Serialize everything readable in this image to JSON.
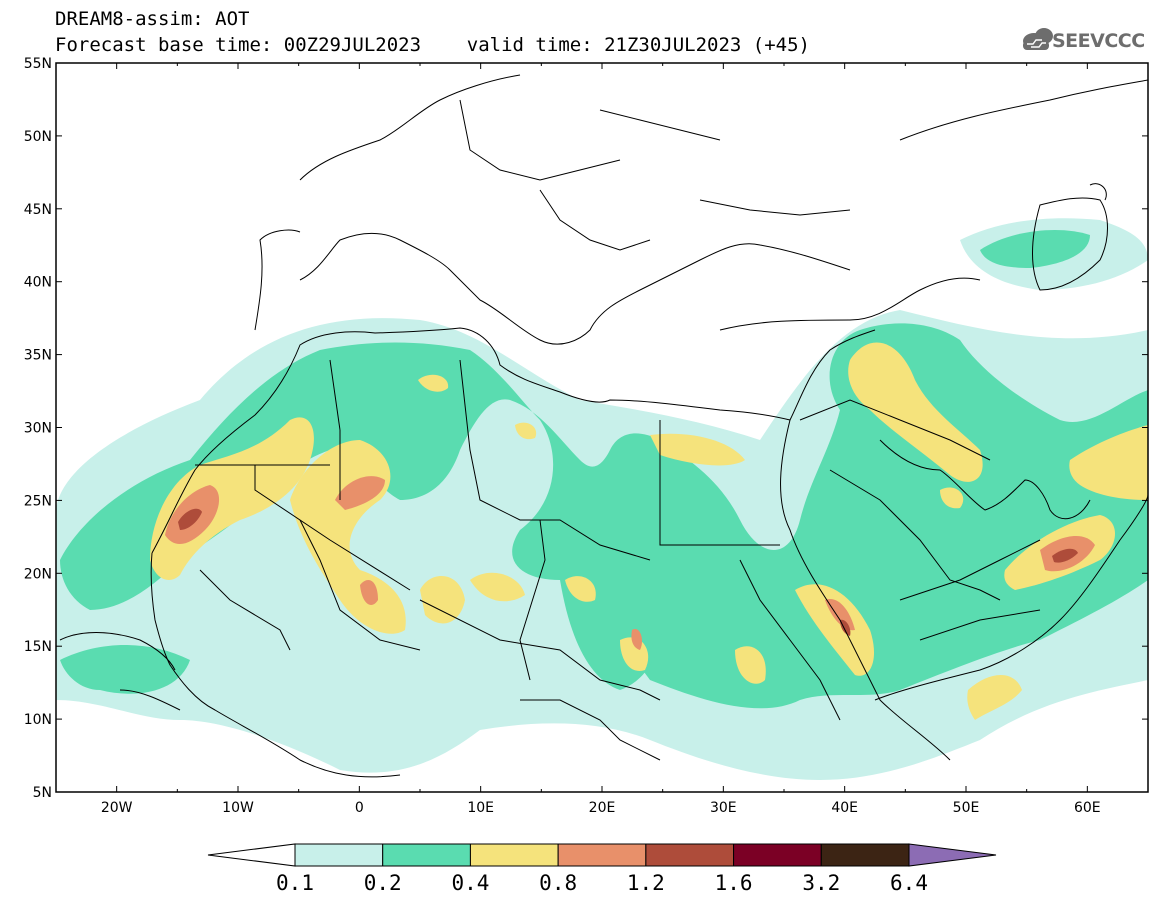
{
  "header": {
    "title": "DREAM8-assim: AOT",
    "subtitle": "Forecast base time: 00Z29JUL2023    valid time: 21Z30JUL2023 (+45)",
    "logo": "SEEVCCC"
  },
  "map": {
    "lon_range": [
      -25,
      65
    ],
    "lat_range": [
      5,
      55
    ],
    "lat_ticks": [
      "55N",
      "50N",
      "45N",
      "40N",
      "35N",
      "30N",
      "25N",
      "20N",
      "15N",
      "10N",
      "5N"
    ],
    "lon_ticks": [
      "20W",
      "10W",
      "0",
      "10E",
      "20E",
      "30E",
      "40E",
      "50E",
      "60E"
    ]
  },
  "legend": {
    "labels": [
      "0.1",
      "0.2",
      "0.4",
      "0.8",
      "1.2",
      "1.6",
      "3.2",
      "6.4"
    ],
    "colors": [
      "#ffffff",
      "#c8f0ea",
      "#5adcb0",
      "#f5e37c",
      "#e8906a",
      "#ae4c3a",
      "#7b0025",
      "#3c2414",
      "#8c6cb4"
    ]
  },
  "colors": {
    "level1": "#c8f0ea",
    "level2": "#5adcb0",
    "level3": "#f5e37c",
    "level4": "#e8906a",
    "level5": "#ae4c3a"
  }
}
